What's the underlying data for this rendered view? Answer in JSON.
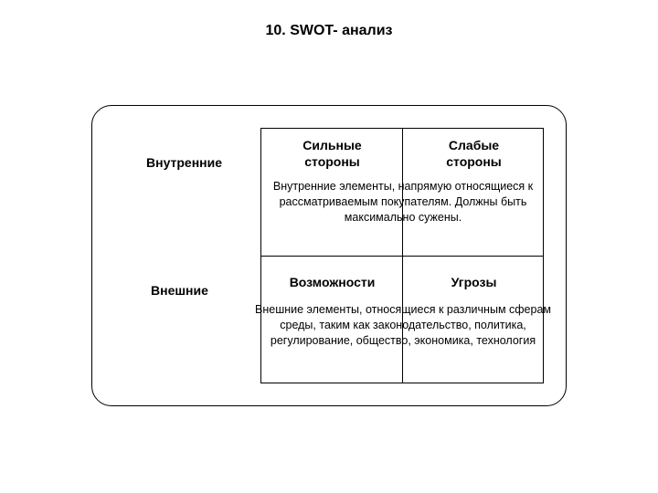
{
  "diagram": {
    "type": "infographic",
    "title": "10. SWOT- анализ",
    "title_fontsize": 16,
    "outer_frame": {
      "border_color": "#000000",
      "border_width": 1.5,
      "border_radius": 22,
      "background_color": "#ffffff"
    },
    "row_labels": {
      "internal": "Внутренние",
      "external": "Внешние",
      "fontsize": 14,
      "font_weight": "bold",
      "color": "#000000"
    },
    "matrix": {
      "border_color": "#000000",
      "border_width": 1.5,
      "rows": 2,
      "cols": 2,
      "cells": {
        "strengths": "Сильные\nстороны",
        "weaknesses": "Слабые\nстороны",
        "opportunities": "Возможности",
        "threats": "Угрозы"
      },
      "header_fontsize": 14,
      "header_font_weight": "bold",
      "header_color": "#000000"
    },
    "descriptions": {
      "internal": "Внутренние элементы, напрямую относящиеся к рассматриваемым покупателям. Должны быть максимально сужены.",
      "external": "Внешние элементы, относящиеся к различным сферам среды, таким как законодательство, политика, регулирование, общество, экономика, технология",
      "fontsize": 12.5,
      "color": "#000000"
    },
    "background_color": "#ffffff"
  }
}
